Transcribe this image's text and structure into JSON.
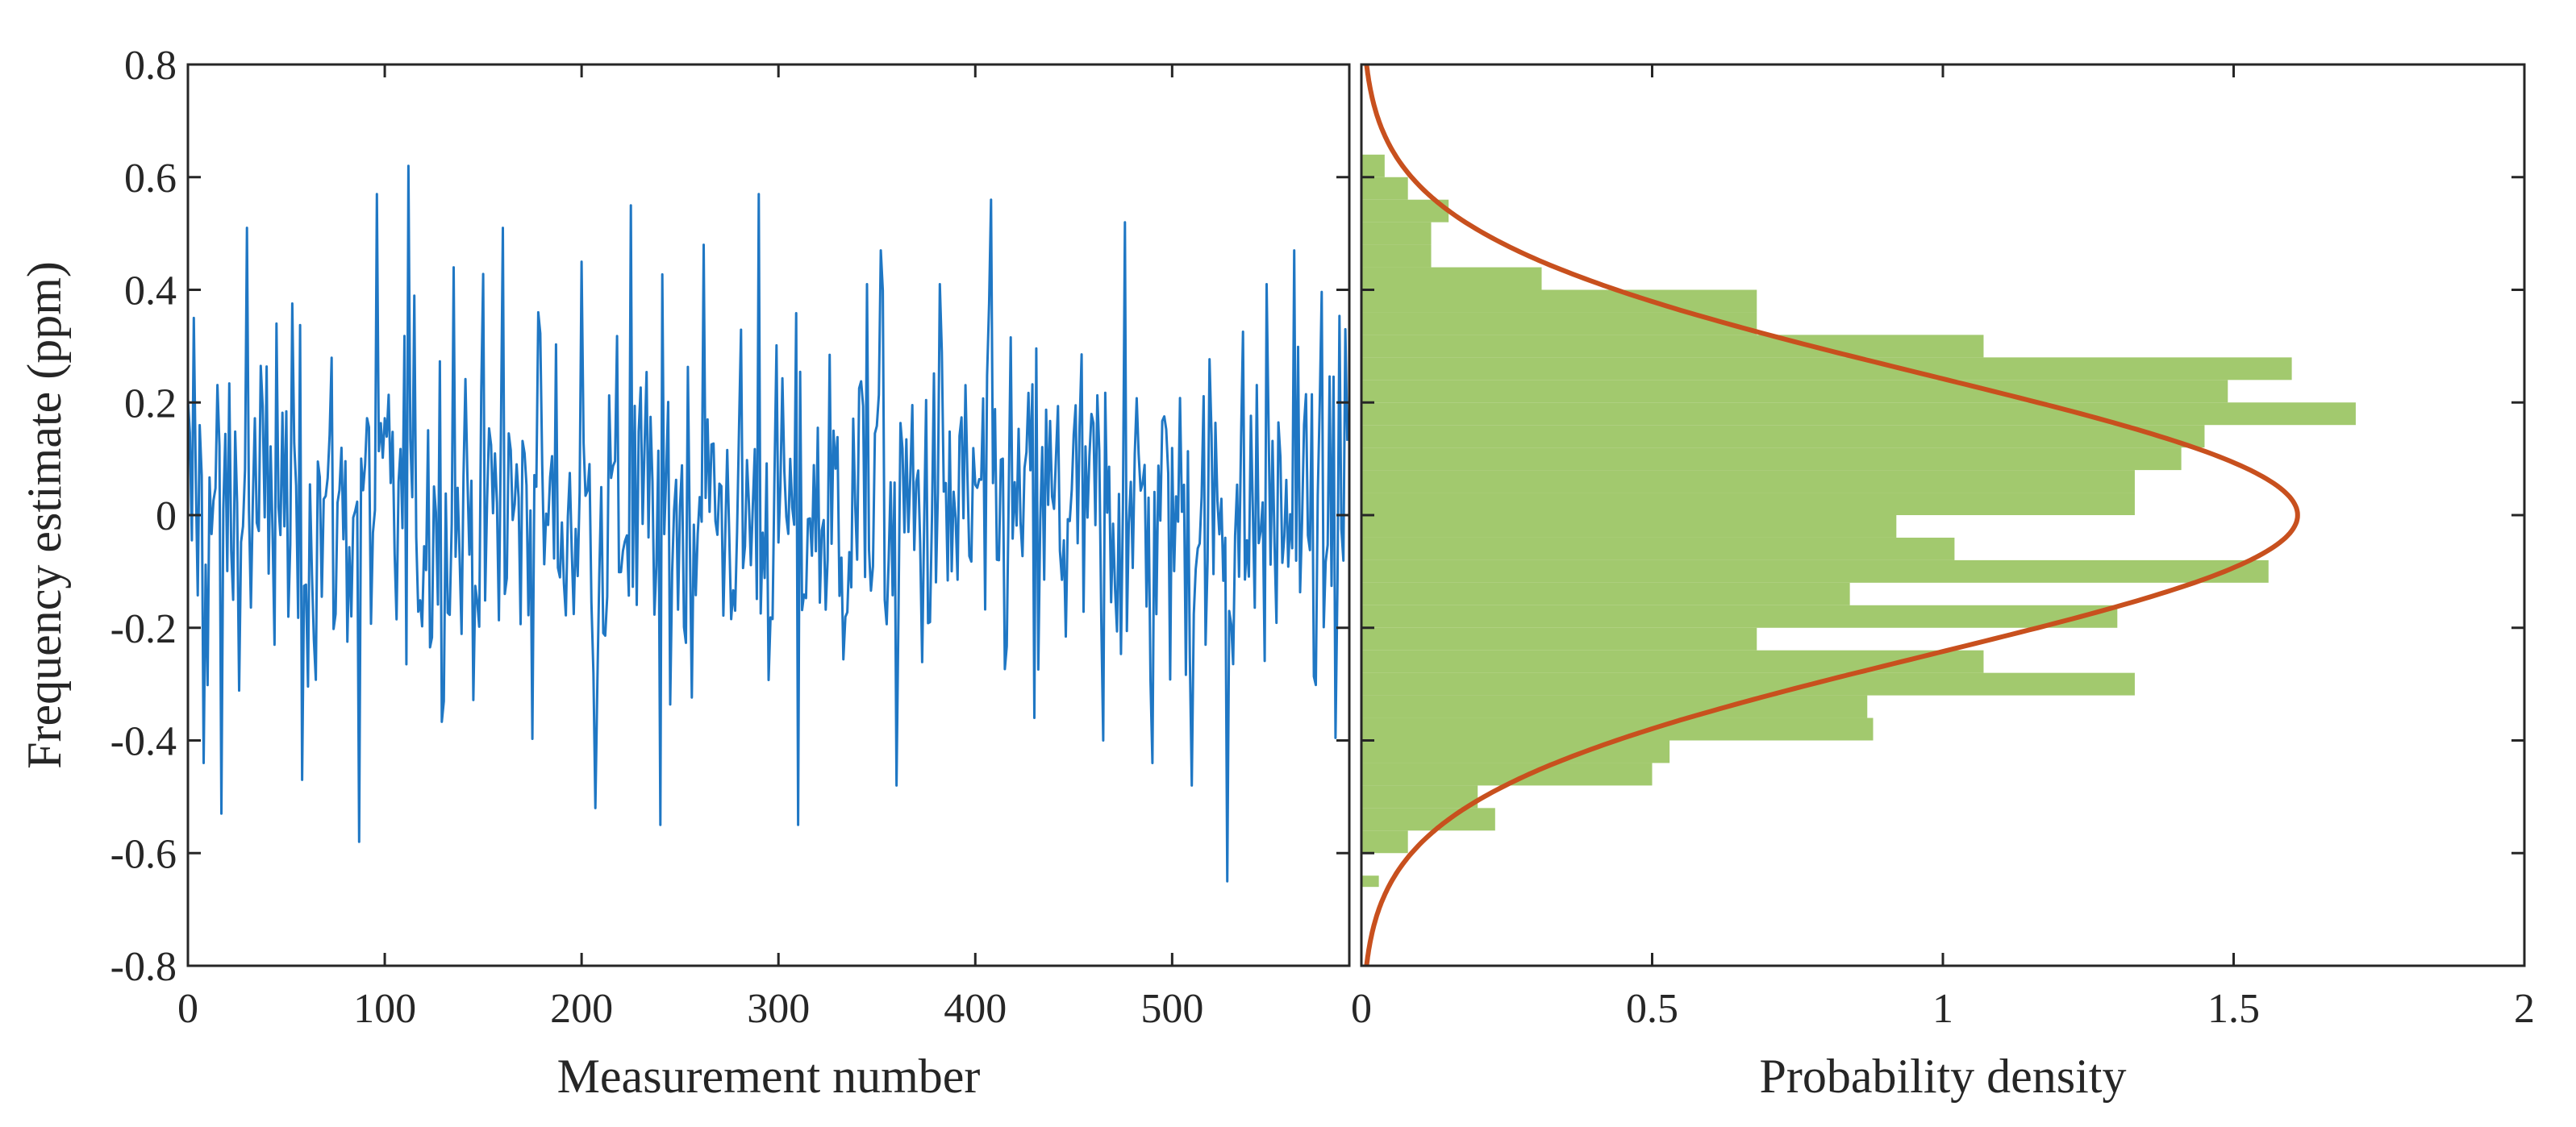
{
  "colors": {
    "trace": "#1f77c4",
    "histogram": "#a2c96e",
    "fit": "#c8501e",
    "axis": "#262626"
  },
  "chart_data": [
    {
      "type": "line",
      "title": "",
      "xlabel": "Measurement number",
      "ylabel": "Frequency estimate (ppm)",
      "xlim": [
        0,
        590
      ],
      "ylim": [
        -0.8,
        0.8
      ],
      "grid": false,
      "x_ticks": [
        "0",
        "100",
        "200",
        "300",
        "400",
        "500"
      ],
      "y_ticks": [
        "0.8",
        "0.6",
        "0.4",
        "0.2",
        "0",
        "-0.2",
        "-0.4",
        "-0.6",
        "-0.8"
      ],
      "series": [
        {
          "n_points": 590,
          "mean": 0.0,
          "std": 0.25,
          "peaks": [
            {
              "x": 3,
              "y": 0.35
            },
            {
              "x": 8,
              "y": -0.44
            },
            {
              "x": 17,
              "y": -0.53
            },
            {
              "x": 30,
              "y": 0.51
            },
            {
              "x": 45,
              "y": 0.34
            },
            {
              "x": 58,
              "y": -0.47
            },
            {
              "x": 87,
              "y": -0.58
            },
            {
              "x": 96,
              "y": 0.57
            },
            {
              "x": 112,
              "y": 0.62
            },
            {
              "x": 135,
              "y": 0.44
            },
            {
              "x": 160,
              "y": 0.51
            },
            {
              "x": 178,
              "y": 0.36
            },
            {
              "x": 200,
              "y": 0.45
            },
            {
              "x": 207,
              "y": -0.52
            },
            {
              "x": 225,
              "y": 0.55
            },
            {
              "x": 240,
              "y": -0.55
            },
            {
              "x": 262,
              "y": 0.48
            },
            {
              "x": 290,
              "y": 0.57
            },
            {
              "x": 310,
              "y": -0.55
            },
            {
              "x": 345,
              "y": 0.41
            },
            {
              "x": 352,
              "y": 0.47
            },
            {
              "x": 360,
              "y": -0.48
            },
            {
              "x": 382,
              "y": 0.41
            },
            {
              "x": 408,
              "y": 0.56
            },
            {
              "x": 430,
              "y": -0.36
            },
            {
              "x": 465,
              "y": -0.4
            },
            {
              "x": 476,
              "y": 0.52
            },
            {
              "x": 490,
              "y": -0.44
            },
            {
              "x": 510,
              "y": -0.48
            },
            {
              "x": 528,
              "y": -0.65
            },
            {
              "x": 548,
              "y": 0.41
            },
            {
              "x": 562,
              "y": 0.47
            },
            {
              "x": 575,
              "y": 0.2
            },
            {
              "x": 588,
              "y": 0.33
            }
          ]
        }
      ]
    },
    {
      "type": "bar",
      "orientation": "horizontal",
      "title": "",
      "xlabel": "Probability density",
      "ylabel": "",
      "xlim": [
        0,
        2
      ],
      "ylim": [
        -0.8,
        0.8
      ],
      "grid": false,
      "x_ticks": [
        "0",
        "0.5",
        "1",
        "1.5",
        "2"
      ],
      "bins": [
        {
          "y0": -0.66,
          "y1": -0.64,
          "value": 0.03
        },
        {
          "y0": -0.6,
          "y1": -0.56,
          "value": 0.08
        },
        {
          "y0": -0.56,
          "y1": -0.52,
          "value": 0.23
        },
        {
          "y0": -0.52,
          "y1": -0.48,
          "value": 0.2
        },
        {
          "y0": -0.48,
          "y1": -0.44,
          "value": 0.5
        },
        {
          "y0": -0.44,
          "y1": -0.4,
          "value": 0.53
        },
        {
          "y0": -0.4,
          "y1": -0.36,
          "value": 0.88
        },
        {
          "y0": -0.36,
          "y1": -0.32,
          "value": 0.87
        },
        {
          "y0": -0.32,
          "y1": -0.28,
          "value": 1.33
        },
        {
          "y0": -0.28,
          "y1": -0.24,
          "value": 1.07
        },
        {
          "y0": -0.24,
          "y1": -0.2,
          "value": 0.68
        },
        {
          "y0": -0.2,
          "y1": -0.16,
          "value": 1.3
        },
        {
          "y0": -0.16,
          "y1": -0.12,
          "value": 0.84
        },
        {
          "y0": -0.12,
          "y1": -0.08,
          "value": 1.56
        },
        {
          "y0": -0.08,
          "y1": -0.04,
          "value": 1.02
        },
        {
          "y0": -0.04,
          "y1": 0.0,
          "value": 0.92
        },
        {
          "y0": 0.0,
          "y1": 0.04,
          "value": 1.33
        },
        {
          "y0": 0.04,
          "y1": 0.08,
          "value": 1.33
        },
        {
          "y0": 0.08,
          "y1": 0.12,
          "value": 1.41
        },
        {
          "y0": 0.12,
          "y1": 0.16,
          "value": 1.45
        },
        {
          "y0": 0.16,
          "y1": 0.2,
          "value": 1.71
        },
        {
          "y0": 0.2,
          "y1": 0.24,
          "value": 1.49
        },
        {
          "y0": 0.24,
          "y1": 0.28,
          "value": 1.6
        },
        {
          "y0": 0.28,
          "y1": 0.32,
          "value": 1.07
        },
        {
          "y0": 0.32,
          "y1": 0.36,
          "value": 0.68
        },
        {
          "y0": 0.36,
          "y1": 0.4,
          "value": 0.68
        },
        {
          "y0": 0.4,
          "y1": 0.44,
          "value": 0.31
        },
        {
          "y0": 0.44,
          "y1": 0.48,
          "value": 0.12
        },
        {
          "y0": 0.48,
          "y1": 0.52,
          "value": 0.12
        },
        {
          "y0": 0.52,
          "y1": 0.56,
          "value": 0.15
        },
        {
          "y0": 0.56,
          "y1": 0.6,
          "value": 0.08
        },
        {
          "y0": 0.6,
          "y1": 0.64,
          "value": 0.04
        }
      ],
      "fit": {
        "type": "normal",
        "mean": 0.0,
        "std": 0.248,
        "peak_density": 1.61
      }
    }
  ]
}
